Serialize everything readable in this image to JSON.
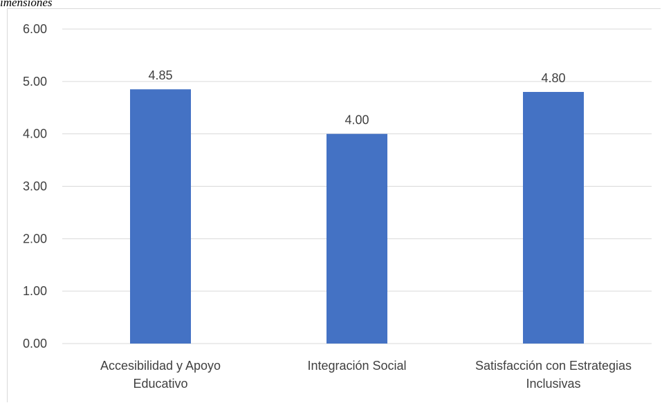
{
  "caption_fragment": "imensiones",
  "chart_data": {
    "type": "bar",
    "categories": [
      [
        "Accesibilidad y Apoyo",
        "Educativo"
      ],
      [
        "Integración Social"
      ],
      [
        "Satisfacción con Estrategias",
        "Inclusivas"
      ]
    ],
    "values": [
      4.85,
      4.0,
      4.8
    ],
    "value_labels": [
      "4.85",
      "4.00",
      "4.80"
    ],
    "ylim": [
      0,
      6
    ],
    "yticks": [
      0,
      1,
      2,
      3,
      4,
      5,
      6
    ],
    "ytick_labels": [
      "0.00",
      "1.00",
      "2.00",
      "3.00",
      "4.00",
      "5.00",
      "6.00"
    ],
    "grid": true,
    "legend": "none",
    "title": "",
    "xlabel": "",
    "ylabel": ""
  },
  "colors": {
    "bar": "#4472C4",
    "grid": "#d9d9d9",
    "text": "#404040"
  }
}
